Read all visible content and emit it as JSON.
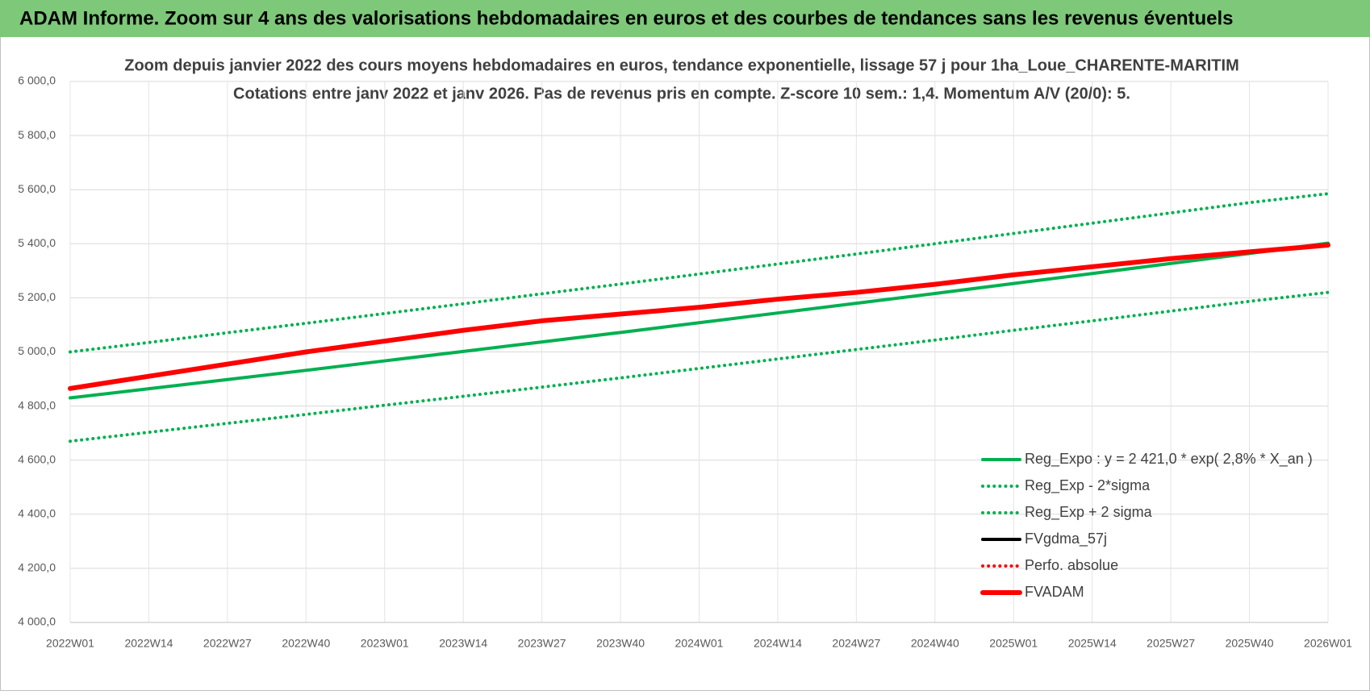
{
  "header": {
    "title": "ADAM Informe. Zoom sur 4 ans des valorisations hebdomadaires en euros et des courbes de tendances sans les revenus éventuels"
  },
  "chart_data": {
    "type": "line",
    "title": "Zoom depuis janvier 2022 des cours moyens hebdomadaires en euros, tendance exponentielle, lissage 57 j pour 1ha_Loue_CHARENTE-MARITIM",
    "subtitle": "Cotations entre janv 2022 et janv 2026. Pas de revenus pris en compte. Z-score 10 sem.: 1,4. Momentum A/V (20/0): 5.",
    "categories": [
      "2022W01",
      "2022W14",
      "2022W27",
      "2022W40",
      "2023W01",
      "2023W14",
      "2023W27",
      "2023W40",
      "2024W01",
      "2024W14",
      "2024W27",
      "2024W40",
      "2025W01",
      "2025W14",
      "2025W27",
      "2025W40",
      "2026W01"
    ],
    "ylim": [
      4000,
      6000
    ],
    "yticks": [
      {
        "value": 4000,
        "label": "4 000,0"
      },
      {
        "value": 4200,
        "label": "4 200,0"
      },
      {
        "value": 4400,
        "label": "4 400,0"
      },
      {
        "value": 4600,
        "label": "4 600,0"
      },
      {
        "value": 4800,
        "label": "4 800,0"
      },
      {
        "value": 5000,
        "label": "5 000,0"
      },
      {
        "value": 5200,
        "label": "5 200,0"
      },
      {
        "value": 5400,
        "label": "5 400,0"
      },
      {
        "value": 5600,
        "label": "5 600,0"
      },
      {
        "value": 5800,
        "label": "5 800,0"
      },
      {
        "value": 6000,
        "label": "6 000,0"
      }
    ],
    "grid": true,
    "legend": "bottom-right",
    "series": [
      {
        "name": "Reg_Expo : y = 2 421,0 * exp( 2,8% *  X_an )",
        "color": "#00b050",
        "style": "solid",
        "values": [
          4830,
          4864,
          4898,
          4932,
          4967,
          5002,
          5037,
          5072,
          5108,
          5144,
          5180,
          5216,
          5253,
          5290,
          5327,
          5364,
          5402
        ]
      },
      {
        "name": "Reg_Exp - 2*sigma",
        "color": "#00b050",
        "style": "dotted",
        "values": [
          4670,
          4703,
          4736,
          4769,
          4803,
          4836,
          4870,
          4904,
          4939,
          4974,
          5009,
          5044,
          5080,
          5115,
          5151,
          5187,
          5220
        ]
      },
      {
        "name": "Reg_Exp + 2 sigma",
        "color": "#00b050",
        "style": "dotted",
        "values": [
          5000,
          5035,
          5071,
          5106,
          5142,
          5178,
          5215,
          5251,
          5288,
          5325,
          5362,
          5400,
          5438,
          5476,
          5514,
          5552,
          5585
        ]
      },
      {
        "name": "FVgdma_57j",
        "color": "#000000",
        "style": "solid",
        "values": [
          null,
          null,
          null,
          null,
          null,
          null,
          null,
          null,
          null,
          null,
          null,
          null,
          null,
          null,
          null,
          null,
          null
        ]
      },
      {
        "name": "Perfo. absolue",
        "color": "#ff0000",
        "style": "dotted",
        "values": [
          null,
          null,
          null,
          null,
          null,
          null,
          null,
          null,
          null,
          null,
          null,
          null,
          null,
          null,
          null,
          null,
          null
        ]
      },
      {
        "name": "FVADAM",
        "color": "#ff0000",
        "style": "thick",
        "values": [
          4865,
          4910,
          4955,
          5000,
          5040,
          5080,
          5115,
          5140,
          5165,
          5195,
          5220,
          5250,
          5285,
          5315,
          5345,
          5370,
          5395
        ]
      }
    ]
  }
}
